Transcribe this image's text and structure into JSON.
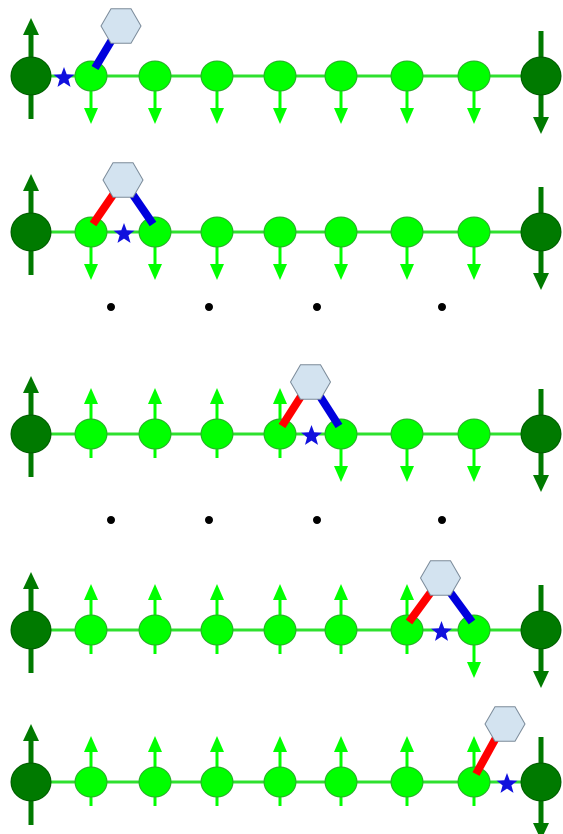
{
  "colors": {
    "chain": "#2fe02f",
    "site": "#00ff00",
    "siteStroke": "#2aaa2a",
    "endSite": "#007a00",
    "endStroke": "#005a00",
    "bondRed": "#ff0000",
    "bondBlue": "#0000dd",
    "hexFill": "#d3e3f0",
    "hexStroke": "#7a8a99",
    "star": "#1010dd",
    "dot": "#000000",
    "background": "#ffffff"
  },
  "icons": {
    "star": "star-icon",
    "hexagon": "hexagon-icon",
    "arrow-up": "arrow-up-icon",
    "arrow-down": "arrow-down-icon"
  },
  "rows": [
    {
      "spins": [
        "down",
        "down",
        "down",
        "down",
        "down",
        "down",
        "down"
      ],
      "hex_left_site": 0,
      "red_bond": false,
      "blue_bond": true,
      "star_position": "left-of-site-0"
    },
    {
      "spins": [
        "down",
        "down",
        "down",
        "down",
        "down",
        "down",
        "down"
      ],
      "hex_left_site": 0,
      "red_bond": true,
      "blue_bond": true,
      "star_position": "between-0-1"
    },
    {
      "spins": [
        "up",
        "up",
        "up",
        "up",
        "down",
        "down",
        "down"
      ],
      "hex_left_site": 3,
      "red_bond": true,
      "blue_bond": true,
      "star_position": "between-3-4"
    },
    {
      "spins": [
        "up",
        "up",
        "up",
        "up",
        "up",
        "up",
        "down"
      ],
      "hex_left_site": 5,
      "red_bond": true,
      "blue_bond": true,
      "star_position": "between-5-6"
    },
    {
      "spins": [
        "up",
        "up",
        "up",
        "up",
        "up",
        "up",
        "up"
      ],
      "hex_left_site": 6,
      "red_bond": true,
      "blue_bond": false,
      "star_position": "right-of-site-6"
    }
  ],
  "ellipsis_rows": 2,
  "ellipsis_dots_per_row": 4
}
